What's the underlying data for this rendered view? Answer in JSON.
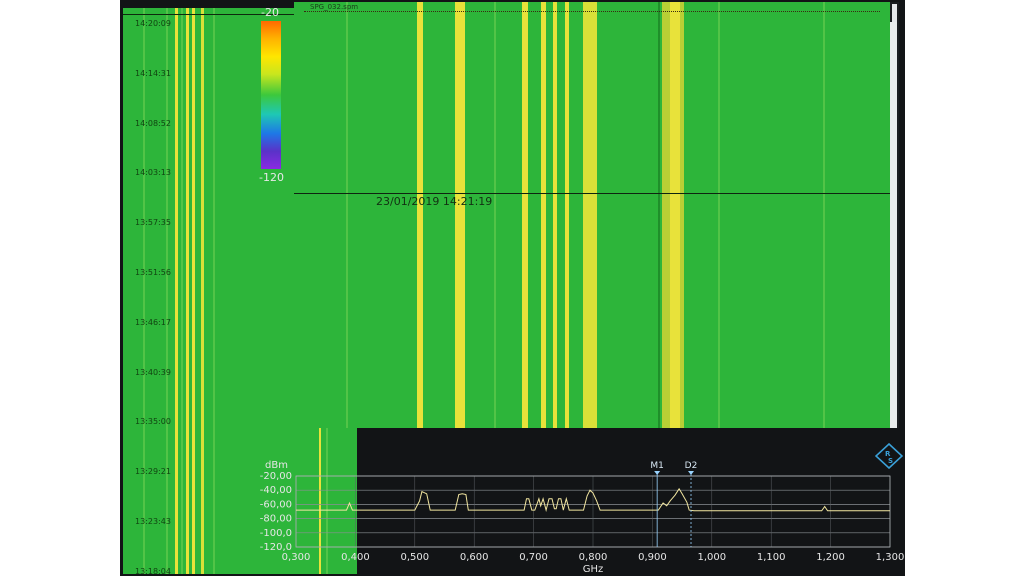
{
  "colorscale": {
    "max_label": "-20",
    "min_label": "-120"
  },
  "overview": {
    "timestamps": [
      "14:20:09",
      "14:14:31",
      "14:08:52",
      "14:03:13",
      "13:57:35",
      "13:51:56",
      "13:46:17",
      "13:40:39",
      "13:35:00",
      "13:29:21",
      "13:23:43",
      "13:18:04"
    ]
  },
  "waterfall": {
    "filename": "SPG_032.spm",
    "cursor_timestamp": "23/01/2019 14:21:19"
  },
  "spectrum": {
    "y_unit": "dBm",
    "x_unit": "GHz",
    "y_ticks": [
      "-20,00",
      "-40,00",
      "-60,00",
      "-80,00",
      "-100,0",
      "-120,0"
    ],
    "x_ticks": [
      "0,300",
      "0,400",
      "0,500",
      "0,600",
      "0,700",
      "0,800",
      "0,900",
      "1,000",
      "1,100",
      "1,200",
      "1,300"
    ],
    "markers": [
      {
        "label": "M1",
        "freq": 0.908
      },
      {
        "label": "D2",
        "freq": 0.965
      }
    ]
  },
  "chart_data": {
    "type": "line",
    "title": "",
    "xlabel": "GHz",
    "ylabel": "dBm",
    "xlim": [
      0.3,
      1.3
    ],
    "ylim": [
      -120,
      -20
    ],
    "series": [
      {
        "x": [
          0.3,
          0.385,
          0.39,
          0.395,
          0.4,
          0.5,
          0.508,
          0.512,
          0.52,
          0.526,
          0.53,
          0.568,
          0.574,
          0.58,
          0.586,
          0.59,
          0.684,
          0.688,
          0.692,
          0.697,
          0.702,
          0.709,
          0.712,
          0.716,
          0.721,
          0.726,
          0.731,
          0.735,
          0.738,
          0.742,
          0.746,
          0.75,
          0.755,
          0.76,
          0.784,
          0.79,
          0.795,
          0.8,
          0.806,
          0.812,
          0.9,
          0.91,
          0.918,
          0.924,
          0.93,
          0.938,
          0.945,
          0.95,
          0.958,
          0.962,
          0.97,
          1.0,
          1.1,
          1.185,
          1.19,
          1.195,
          1.3
        ],
        "y": [
          -68,
          -68,
          -58,
          -68,
          -68,
          -68,
          -55,
          -42,
          -45,
          -68,
          -68,
          -68,
          -46,
          -45,
          -46,
          -68,
          -68,
          -52,
          -52,
          -68,
          -68,
          -52,
          -62,
          -52,
          -68,
          -52,
          -52,
          -66,
          -66,
          -52,
          -52,
          -68,
          -52,
          -68,
          -68,
          -48,
          -40,
          -44,
          -55,
          -68,
          -68,
          -68,
          -58,
          -62,
          -55,
          -47,
          -38,
          -45,
          -57,
          -68,
          -69,
          -69,
          -69,
          -69,
          -63,
          -69,
          -69
        ]
      }
    ],
    "grid": true
  }
}
